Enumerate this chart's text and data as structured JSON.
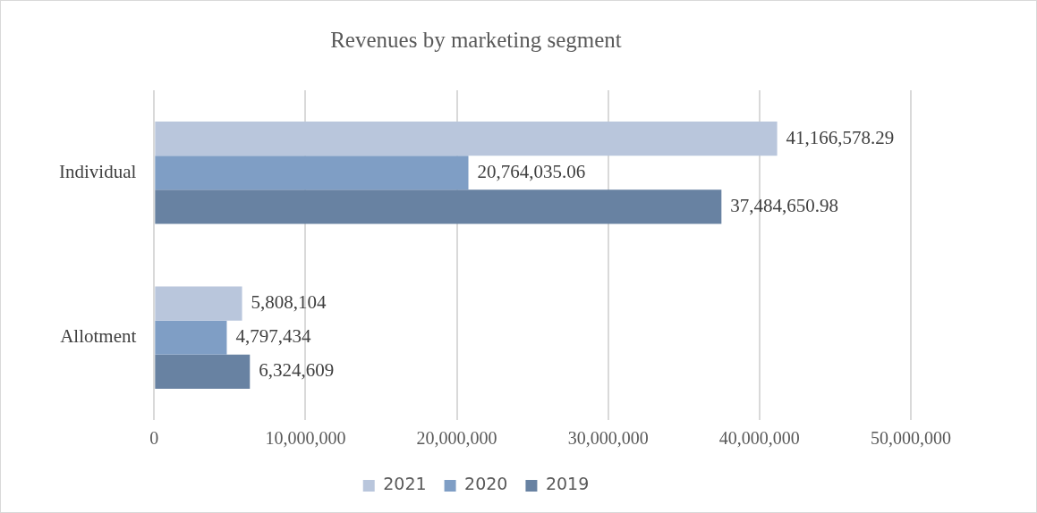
{
  "chart_data": {
    "type": "bar",
    "orientation": "horizontal",
    "title": "Revenues by marketing segment",
    "categories": [
      "Individual",
      "Allotment"
    ],
    "series": [
      {
        "name": "2021",
        "color": "#b9c6dc",
        "values": [
          41166578.29,
          5808104
        ],
        "value_labels": [
          "41,166,578.29",
          "5,808,104"
        ]
      },
      {
        "name": "2020",
        "color": "#7f9ec5",
        "values": [
          20764035.06,
          4797434
        ],
        "value_labels": [
          "20,764,035.06",
          "4,797,434"
        ]
      },
      {
        "name": "2019",
        "color": "#6882a2",
        "values": [
          37484650.98,
          6324609
        ],
        "value_labels": [
          "37,484,650.98",
          "6,324,609"
        ]
      }
    ],
    "xlim": [
      0,
      50000000
    ],
    "xticks": [
      0,
      {
        "value": 10000000,
        "label": "10,000,000"
      },
      {
        "value": 20000000,
        "label": "20,000,000"
      },
      {
        "value": 30000000,
        "label": "30,000,000"
      },
      {
        "value": 40000000,
        "label": "40,000,000"
      },
      {
        "value": 50000000,
        "label": "50,000,000"
      }
    ],
    "grid": "x",
    "legend": "bottom"
  }
}
